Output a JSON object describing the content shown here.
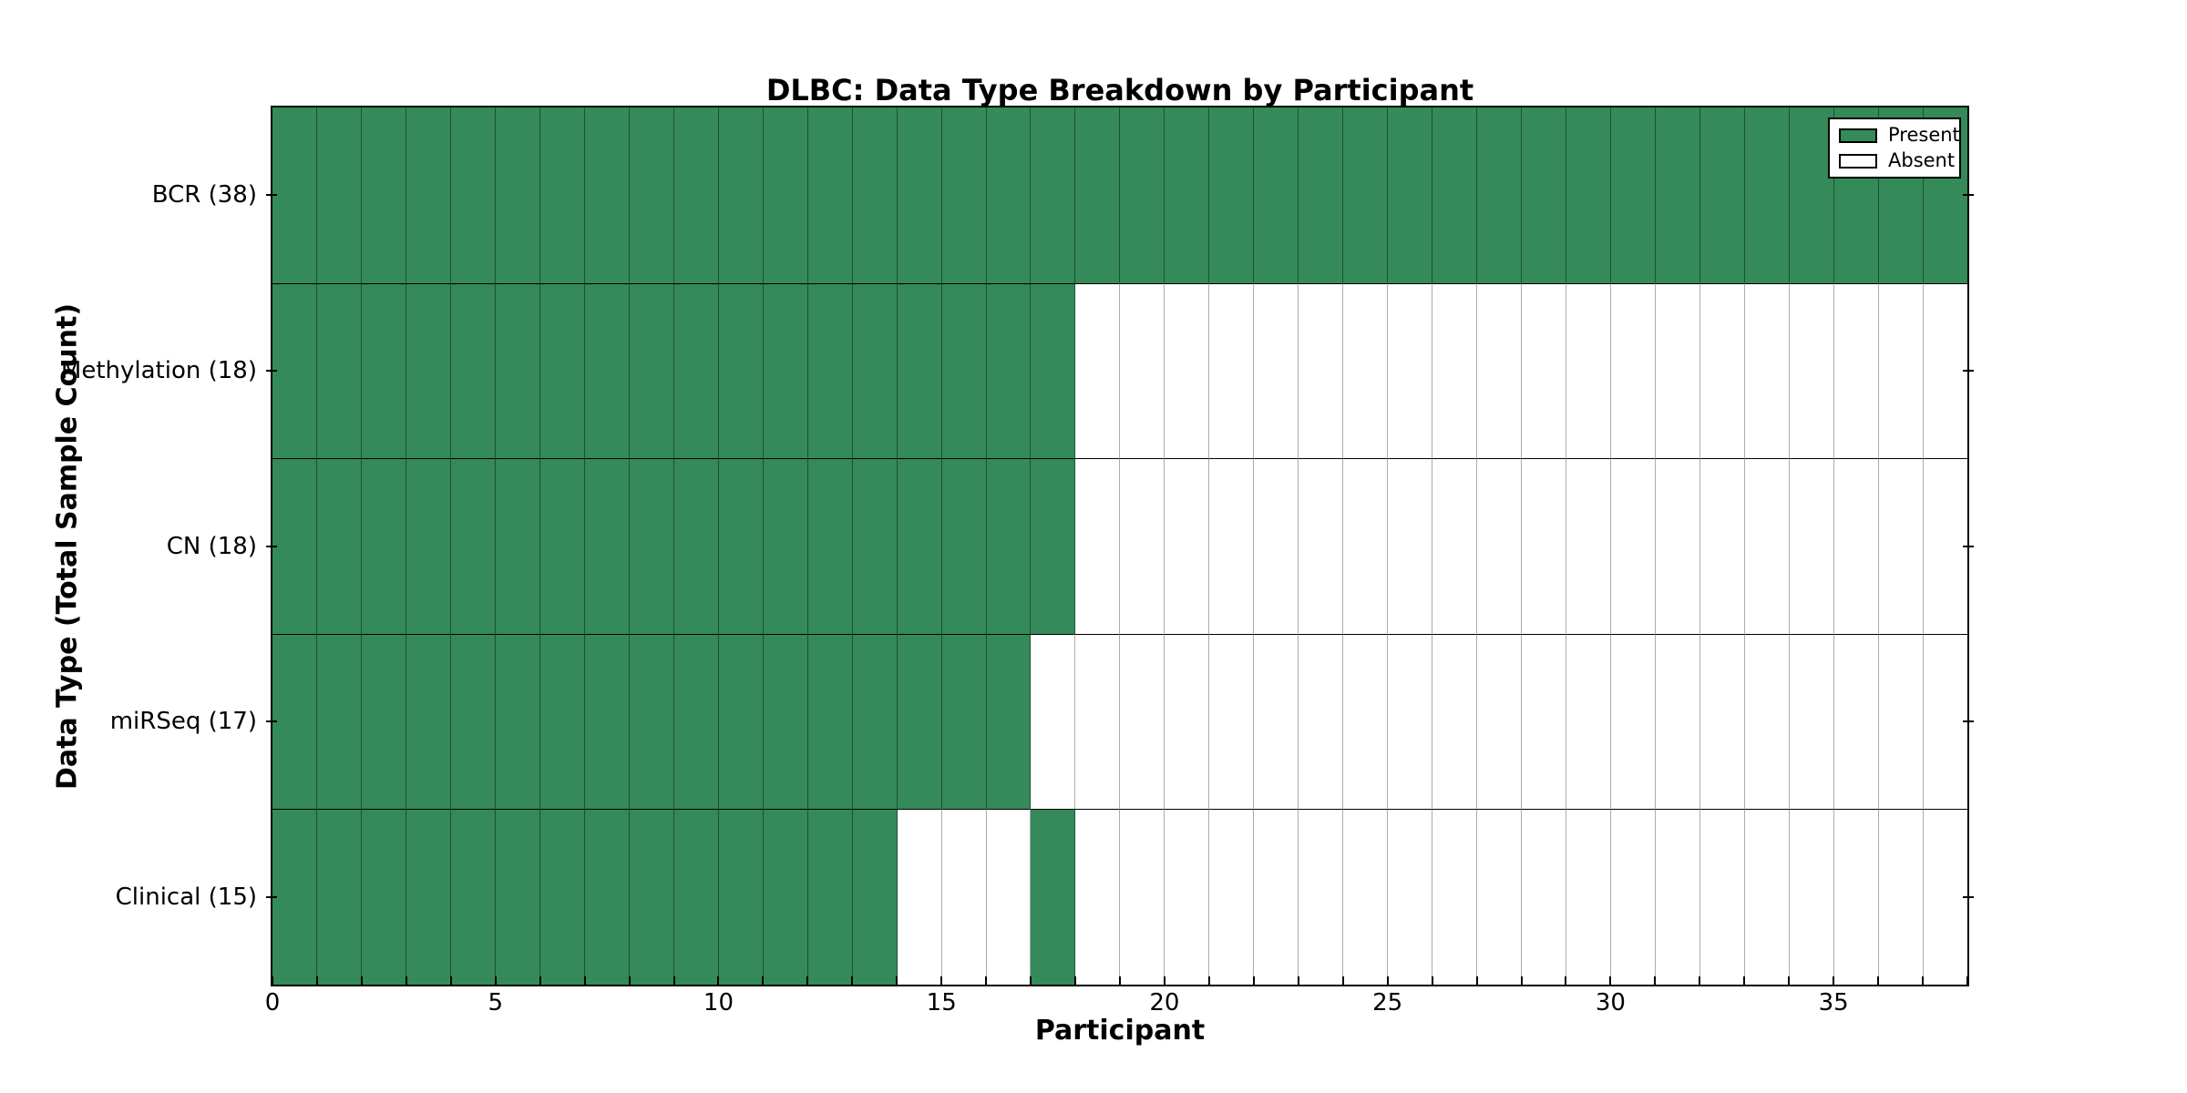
{
  "chart_data": {
    "type": "heatmap",
    "title": "DLBC: Data Type Breakdown by Participant",
    "xlabel": "Participant",
    "ylabel": "Data Type (Total Sample Count)",
    "n_participants": 38,
    "x_ticks": [
      0,
      5,
      10,
      15,
      20,
      25,
      30,
      35
    ],
    "x_range": [
      0,
      38
    ],
    "grid": "cell-borders",
    "legend_position": "upper-right",
    "colors": {
      "present": "#348a58",
      "absent": "#ffffff"
    },
    "rows": [
      {
        "label": "BCR (38)",
        "data_type": "BCR",
        "total": 38,
        "cells": "11111111111111111111111111111111111111"
      },
      {
        "label": "Methylation (18)",
        "data_type": "Methylation",
        "total": 18,
        "cells": "11111111111111111100000000000000000000"
      },
      {
        "label": "CN (18)",
        "data_type": "CN",
        "total": 18,
        "cells": "11111111111111111100000000000000000000"
      },
      {
        "label": "miRSeq (17)",
        "data_type": "miRSeq",
        "total": 17,
        "cells": "11111111111111111000000000000000000000"
      },
      {
        "label": "Clinical (15)",
        "data_type": "Clinical",
        "total": 15,
        "cells": "11111111111111000100000000000000000000"
      }
    ]
  },
  "legend": {
    "items": [
      {
        "label": "Present",
        "color": "#348a58"
      },
      {
        "label": "Absent",
        "color": "#ffffff"
      }
    ]
  }
}
